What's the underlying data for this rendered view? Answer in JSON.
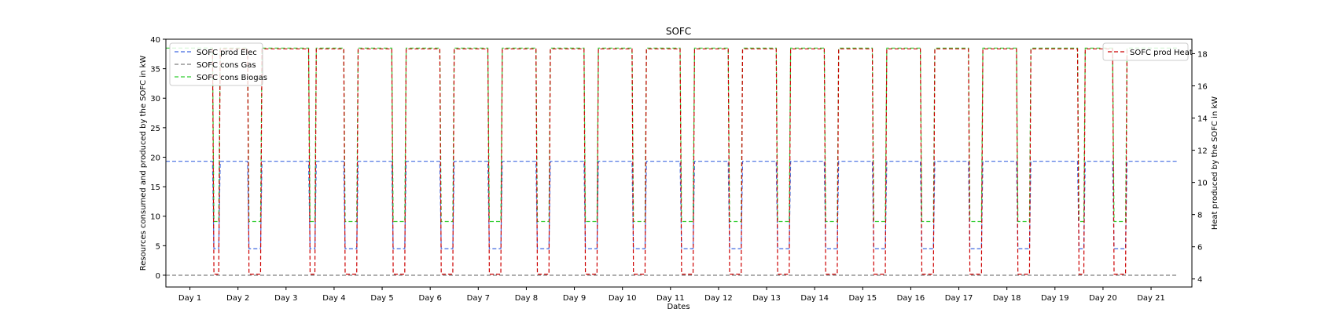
{
  "chart_data": {
    "type": "line",
    "title": "SOFC",
    "xlabel": "Dates",
    "ylabel_left": "Resources consumed and produced by the SOFC in kW",
    "ylabel_right": "Heat produced by the SOFC in kW",
    "ylim_left": [
      -2,
      40
    ],
    "ylim_right": [
      3.5,
      18.9
    ],
    "yticks_left": [
      0,
      5,
      10,
      15,
      20,
      25,
      30,
      35,
      40
    ],
    "yticks_right": [
      4,
      6,
      8,
      10,
      12,
      14,
      16,
      18
    ],
    "xlim": [
      0.5,
      21.85
    ],
    "grid": false,
    "categories": [
      "Day 1",
      "Day 2",
      "Day 3",
      "Day 4",
      "Day 5",
      "Day 6",
      "Day 7",
      "Day 8",
      "Day 9",
      "Day 10",
      "Day 11",
      "Day 12",
      "Day 13",
      "Day 14",
      "Day 15",
      "Day 16",
      "Day 17",
      "Day 18",
      "Day 19",
      "Day 20",
      "Day 21"
    ],
    "x_ticks": [
      1,
      2,
      3,
      4,
      5,
      6,
      7,
      8,
      9,
      10,
      11,
      12,
      13,
      14,
      15,
      16,
      17,
      18,
      19,
      20,
      21
    ],
    "legend_left_position": "upper-left",
    "legend_right_position": "upper-right",
    "series": [
      {
        "name": "SOFC prod Elec",
        "axis": "left",
        "color": "#4169e1",
        "dash": "dashed",
        "x": [
          0.5,
          1.47,
          1.5,
          1.6,
          1.63,
          2.2,
          2.23,
          2.47,
          2.5,
          3.47,
          3.5,
          3.6,
          3.63,
          4.2,
          4.23,
          4.47,
          4.5,
          5.2,
          5.23,
          5.47,
          5.5,
          6.2,
          6.23,
          6.47,
          6.5,
          7.2,
          7.23,
          7.47,
          7.5,
          8.2,
          8.23,
          8.47,
          8.5,
          9.2,
          9.23,
          9.47,
          9.5,
          10.2,
          10.23,
          10.47,
          10.5,
          11.2,
          11.23,
          11.47,
          11.5,
          12.2,
          12.23,
          12.47,
          12.5,
          13.2,
          13.23,
          13.47,
          13.5,
          14.2,
          14.23,
          14.47,
          14.5,
          15.2,
          15.23,
          15.47,
          15.5,
          16.2,
          16.23,
          16.47,
          16.5,
          17.2,
          17.23,
          17.47,
          17.5,
          18.2,
          18.23,
          18.47,
          18.5,
          19.47,
          19.5,
          19.6,
          19.63,
          20.2,
          20.23,
          20.47,
          20.5,
          21.55
        ],
        "y": [
          19.3,
          19.3,
          4.5,
          4.5,
          19.3,
          19.3,
          4.5,
          4.5,
          19.3,
          19.3,
          4.5,
          4.5,
          19.3,
          19.3,
          4.5,
          4.5,
          19.3,
          19.3,
          4.5,
          4.5,
          19.3,
          19.3,
          4.5,
          4.5,
          19.3,
          19.3,
          4.5,
          4.5,
          19.3,
          19.3,
          4.5,
          4.5,
          19.3,
          19.3,
          4.5,
          4.5,
          19.3,
          19.3,
          4.5,
          4.5,
          19.3,
          19.3,
          4.5,
          4.5,
          19.3,
          19.3,
          4.5,
          4.5,
          19.3,
          19.3,
          4.5,
          4.5,
          19.3,
          19.3,
          4.5,
          4.5,
          19.3,
          19.3,
          4.5,
          4.5,
          19.3,
          19.3,
          4.5,
          4.5,
          19.3,
          19.3,
          4.5,
          4.5,
          19.3,
          19.3,
          4.5,
          4.5,
          19.3,
          19.3,
          4.5,
          4.5,
          19.3,
          19.3,
          4.5,
          4.5,
          19.3,
          19.3
        ]
      },
      {
        "name": "SOFC cons Gas",
        "axis": "left",
        "color": "#7f7f7f",
        "dash": "dashed",
        "x": [
          0.5,
          21.55
        ],
        "y": [
          0,
          0
        ]
      },
      {
        "name": "SOFC cons Biogas",
        "axis": "left",
        "color": "#32cd32",
        "dash": "dashed",
        "x": [
          0.5,
          1.47,
          1.5,
          1.6,
          1.63,
          2.2,
          2.23,
          2.47,
          2.5,
          3.47,
          3.5,
          3.6,
          3.63,
          4.2,
          4.23,
          4.47,
          4.5,
          5.2,
          5.23,
          5.47,
          5.5,
          6.2,
          6.23,
          6.47,
          6.5,
          7.2,
          7.23,
          7.47,
          7.5,
          8.2,
          8.23,
          8.47,
          8.5,
          9.2,
          9.23,
          9.47,
          9.5,
          10.2,
          10.23,
          10.47,
          10.5,
          11.2,
          11.23,
          11.47,
          11.5,
          12.2,
          12.23,
          12.47,
          12.5,
          13.2,
          13.23,
          13.47,
          13.5,
          14.2,
          14.23,
          14.47,
          14.5,
          15.2,
          15.23,
          15.47,
          15.5,
          16.2,
          16.23,
          16.47,
          16.5,
          17.2,
          17.23,
          17.47,
          17.5,
          18.2,
          18.23,
          18.47,
          18.5,
          19.47,
          19.5,
          19.6,
          19.63,
          20.2,
          20.23,
          20.47,
          20.5,
          21.55
        ],
        "y": [
          38.5,
          38.5,
          9.1,
          9.1,
          38.5,
          38.5,
          9.1,
          9.1,
          38.5,
          38.5,
          9.1,
          9.1,
          38.5,
          38.5,
          9.1,
          9.1,
          38.5,
          38.5,
          9.1,
          9.1,
          38.5,
          38.5,
          9.1,
          9.1,
          38.5,
          38.5,
          9.1,
          9.1,
          38.5,
          38.5,
          9.1,
          9.1,
          38.5,
          38.5,
          9.1,
          9.1,
          38.5,
          38.5,
          9.1,
          9.1,
          38.5,
          38.5,
          9.1,
          9.1,
          38.5,
          38.5,
          9.1,
          9.1,
          38.5,
          38.5,
          9.1,
          9.1,
          38.5,
          38.5,
          9.1,
          9.1,
          38.5,
          38.5,
          9.1,
          9.1,
          38.5,
          38.5,
          9.1,
          9.1,
          38.5,
          38.5,
          9.1,
          9.1,
          38.5,
          38.5,
          9.1,
          9.1,
          38.5,
          38.5,
          9.1,
          9.1,
          38.5,
          38.5,
          9.1,
          9.1,
          38.5,
          38.5
        ]
      },
      {
        "name": "SOFC prod Heat",
        "axis": "right",
        "color": "#cc0000",
        "dash": "dashed",
        "x": [
          1.47,
          1.5,
          1.6,
          1.63,
          2.2,
          2.23,
          2.47,
          2.5,
          3.47,
          3.5,
          3.6,
          3.63,
          4.2,
          4.23,
          4.47,
          4.5,
          5.2,
          5.23,
          5.47,
          5.5,
          6.2,
          6.23,
          6.47,
          6.5,
          7.2,
          7.23,
          7.47,
          7.5,
          8.2,
          8.23,
          8.47,
          8.5,
          9.2,
          9.23,
          9.47,
          9.5,
          10.2,
          10.23,
          10.47,
          10.5,
          11.2,
          11.23,
          11.47,
          11.5,
          12.2,
          12.23,
          12.47,
          12.5,
          13.2,
          13.23,
          13.47,
          13.5,
          14.2,
          14.23,
          14.47,
          14.5,
          15.2,
          15.23,
          15.47,
          15.5,
          16.2,
          16.23,
          16.47,
          16.5,
          17.2,
          17.23,
          17.47,
          17.5,
          18.2,
          18.23,
          18.47,
          18.5,
          19.47,
          19.5,
          19.6,
          19.63,
          20.2,
          20.23,
          20.47,
          20.5
        ],
        "y": [
          18.3,
          4.3,
          4.3,
          18.3,
          18.3,
          4.3,
          4.3,
          18.3,
          18.3,
          4.3,
          4.3,
          18.3,
          18.3,
          4.3,
          4.3,
          18.3,
          18.3,
          4.3,
          4.3,
          18.3,
          18.3,
          4.3,
          4.3,
          18.3,
          18.3,
          4.3,
          4.3,
          18.3,
          18.3,
          4.3,
          4.3,
          18.3,
          18.3,
          4.3,
          4.3,
          18.3,
          18.3,
          4.3,
          4.3,
          18.3,
          18.3,
          4.3,
          4.3,
          18.3,
          18.3,
          4.3,
          4.3,
          18.3,
          18.3,
          4.3,
          4.3,
          18.3,
          18.3,
          4.3,
          4.3,
          18.3,
          18.3,
          4.3,
          4.3,
          18.3,
          18.3,
          4.3,
          4.3,
          18.3,
          18.3,
          4.3,
          4.3,
          18.3,
          18.3,
          4.3,
          4.3,
          18.3,
          18.3,
          4.3,
          4.3,
          18.3,
          18.3,
          4.3,
          4.3,
          18.3
        ]
      }
    ]
  }
}
